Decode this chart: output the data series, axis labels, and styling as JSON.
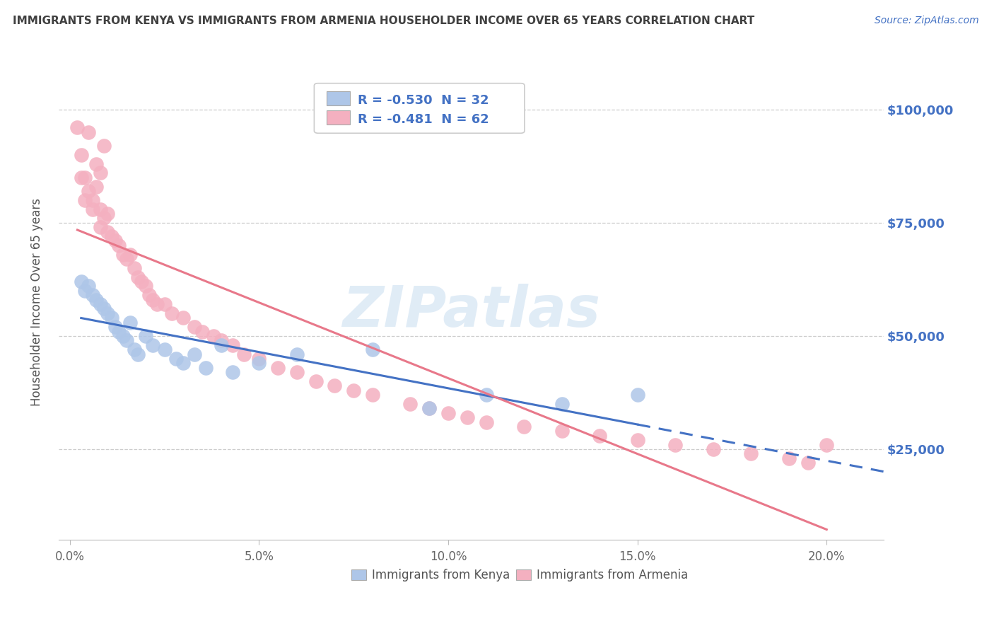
{
  "title": "IMMIGRANTS FROM KENYA VS IMMIGRANTS FROM ARMENIA HOUSEHOLDER INCOME OVER 65 YEARS CORRELATION CHART",
  "source": "Source: ZipAtlas.com",
  "ylabel": "Householder Income Over 65 years",
  "xlabel_ticks": [
    "0.0%",
    "5.0%",
    "10.0%",
    "15.0%",
    "20.0%"
  ],
  "xlabel_vals": [
    0.0,
    0.05,
    0.1,
    0.15,
    0.2
  ],
  "ylabel_ticks": [
    "$25,000",
    "$50,000",
    "$75,000",
    "$100,000"
  ],
  "ylabel_vals": [
    25000,
    50000,
    75000,
    100000
  ],
  "ylim": [
    5000,
    110000
  ],
  "xlim": [
    -0.003,
    0.215
  ],
  "kenya_R": -0.53,
  "kenya_N": 32,
  "armenia_R": -0.481,
  "armenia_N": 62,
  "kenya_color": "#aec6e8",
  "armenia_color": "#f4b0c0",
  "kenya_line_color": "#4472c4",
  "armenia_line_color": "#e8788a",
  "legend_box_kenya": "#aec6e8",
  "legend_box_armenia": "#f4b0c0",
  "legend_text_color": "#4472c4",
  "title_color": "#404040",
  "source_color": "#4472c4",
  "watermark": "ZIPatlas",
  "kenya_x": [
    0.003,
    0.004,
    0.005,
    0.006,
    0.007,
    0.008,
    0.009,
    0.01,
    0.011,
    0.012,
    0.013,
    0.014,
    0.015,
    0.016,
    0.017,
    0.018,
    0.02,
    0.022,
    0.025,
    0.028,
    0.03,
    0.033,
    0.036,
    0.04,
    0.043,
    0.05,
    0.06,
    0.08,
    0.095,
    0.11,
    0.13,
    0.15
  ],
  "kenya_y": [
    62000,
    60000,
    61000,
    59000,
    58000,
    57000,
    56000,
    55000,
    54000,
    52000,
    51000,
    50000,
    49000,
    53000,
    47000,
    46000,
    50000,
    48000,
    47000,
    45000,
    44000,
    46000,
    43000,
    48000,
    42000,
    44000,
    46000,
    47000,
    34000,
    37000,
    35000,
    37000
  ],
  "armenia_x": [
    0.003,
    0.004,
    0.005,
    0.006,
    0.006,
    0.007,
    0.008,
    0.008,
    0.009,
    0.01,
    0.01,
    0.011,
    0.012,
    0.013,
    0.014,
    0.015,
    0.016,
    0.017,
    0.018,
    0.019,
    0.02,
    0.021,
    0.022,
    0.023,
    0.025,
    0.027,
    0.03,
    0.033,
    0.035,
    0.038,
    0.04,
    0.043,
    0.046,
    0.05,
    0.055,
    0.06,
    0.065,
    0.07,
    0.075,
    0.08,
    0.09,
    0.095,
    0.1,
    0.105,
    0.11,
    0.12,
    0.13,
    0.14,
    0.15,
    0.16,
    0.17,
    0.18,
    0.19,
    0.195,
    0.2,
    0.005,
    0.007,
    0.009,
    0.002,
    0.003,
    0.004,
    0.008
  ],
  "armenia_y": [
    90000,
    85000,
    82000,
    80000,
    78000,
    83000,
    78000,
    74000,
    76000,
    73000,
    77000,
    72000,
    71000,
    70000,
    68000,
    67000,
    68000,
    65000,
    63000,
    62000,
    61000,
    59000,
    58000,
    57000,
    57000,
    55000,
    54000,
    52000,
    51000,
    50000,
    49000,
    48000,
    46000,
    45000,
    43000,
    42000,
    40000,
    39000,
    38000,
    37000,
    35000,
    34000,
    33000,
    32000,
    31000,
    30000,
    29000,
    28000,
    27000,
    26000,
    25000,
    24000,
    23000,
    22000,
    26000,
    95000,
    88000,
    92000,
    96000,
    85000,
    80000,
    86000
  ]
}
